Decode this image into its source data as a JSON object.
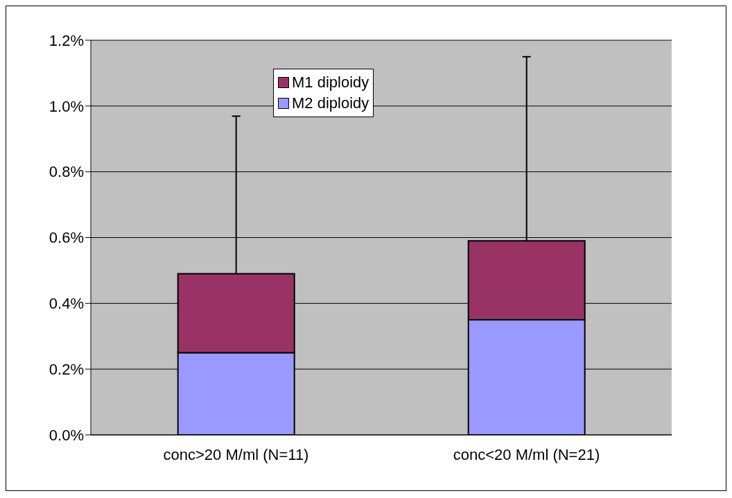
{
  "chart_data": {
    "type": "bar",
    "stacked": true,
    "categories": [
      "conc>20 M/ml (N=11)",
      "conc<20 M/ml (N=21)"
    ],
    "series": [
      {
        "name": "M2 diploidy",
        "color": "#9999ff",
        "values": [
          0.25,
          0.35
        ]
      },
      {
        "name": "M1 diploidy",
        "color": "#993366",
        "values": [
          0.24,
          0.24
        ],
        "errors": [
          [
            0.49,
            0.97
          ],
          [
            0.59,
            1.15
          ]
        ]
      }
    ],
    "ylim": [
      0,
      1.2
    ],
    "yticks": [
      {
        "value": 0,
        "label": "0.0%"
      },
      {
        "value": 0.2,
        "label": "0.2%"
      },
      {
        "value": 0.4,
        "label": "0.4%"
      },
      {
        "value": 0.6,
        "label": "0.6%"
      },
      {
        "value": 0.8,
        "label": "0.8%"
      },
      {
        "value": 1.0,
        "label": "1.0%"
      },
      {
        "value": 1.2,
        "label": "1.2%"
      }
    ],
    "grid": "y",
    "legend": "top"
  }
}
